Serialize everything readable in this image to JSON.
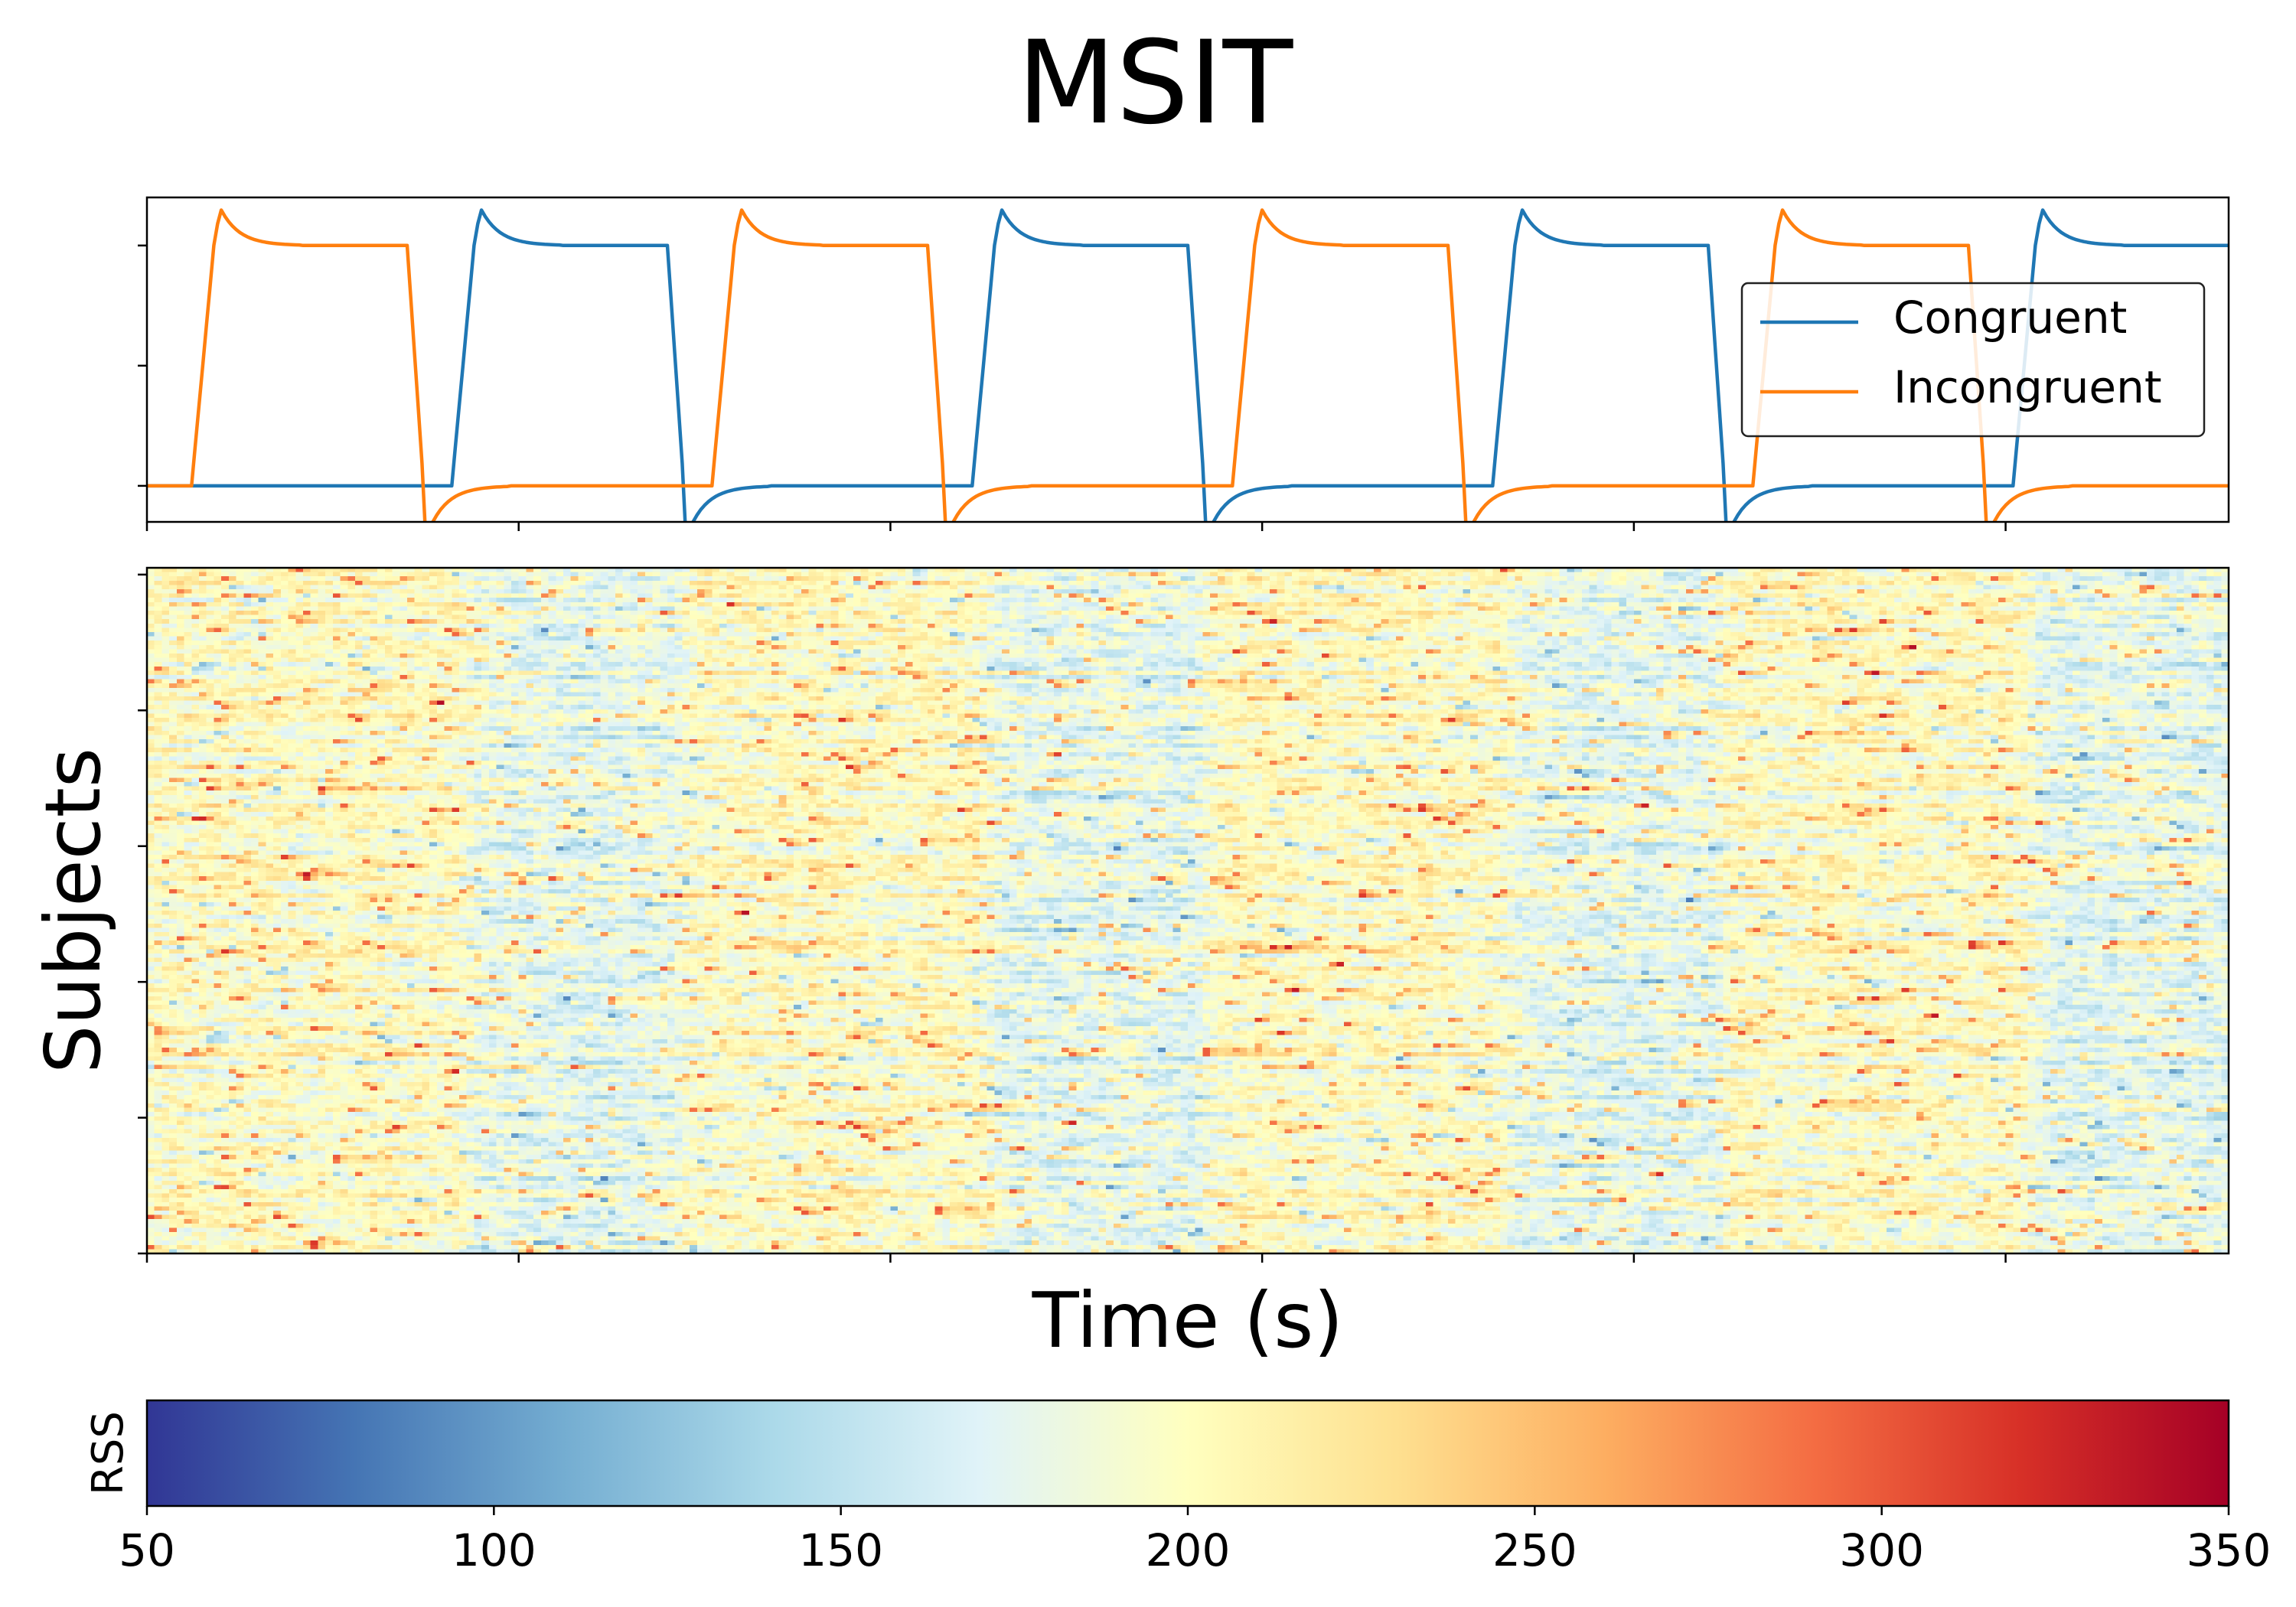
{
  "chart_data": [
    {
      "type": "line",
      "title": "MSIT",
      "xlabel": "",
      "ylabel": "",
      "x_range": [
        0,
        280
      ],
      "y_range": [
        -0.15,
        1.2
      ],
      "grid": false,
      "legend_placement": "center-right",
      "x_tick_labels_shown": false,
      "y_tick_labels_shown": false,
      "series": [
        {
          "name": "Congruent",
          "color": "#1f77b4",
          "block_onsets": [
            42,
            112,
            182,
            252
          ],
          "block_length": 28,
          "baseline": 0,
          "plateau": 1,
          "overshoot_peak": 1.22,
          "undershoot_trough": -0.22
        },
        {
          "name": "Incongruent",
          "color": "#ff7f0e",
          "block_onsets": [
            7,
            77,
            147,
            217
          ],
          "block_length": 28,
          "baseline": 0,
          "plateau": 1,
          "overshoot_peak": 1.22,
          "undershoot_trough": -0.22
        }
      ]
    },
    {
      "type": "heatmap",
      "xlabel": "Time (s)",
      "ylabel": "Subjects",
      "x_range": [
        0,
        280
      ],
      "n_subjects": 160,
      "n_timepoints": 280,
      "colormap": "RdYlBu_r",
      "value_range": [
        50,
        350
      ],
      "mean_value": 200,
      "note": "dense single-subject RSS values; lower (blue) during Congruent blocks, higher (red) spikes scattered"
    }
  ],
  "colorbar": {
    "label": "RSS",
    "min": 50,
    "max": 350,
    "tick_labels": [
      "50",
      "100",
      "150",
      "200",
      "250",
      "300",
      "350"
    ],
    "colors": [
      "#313695",
      "#4575b4",
      "#74add1",
      "#abd9e9",
      "#e0f3f8",
      "#ffffbf",
      "#fee090",
      "#fdae61",
      "#f46d43",
      "#d73027",
      "#a50026"
    ]
  }
}
